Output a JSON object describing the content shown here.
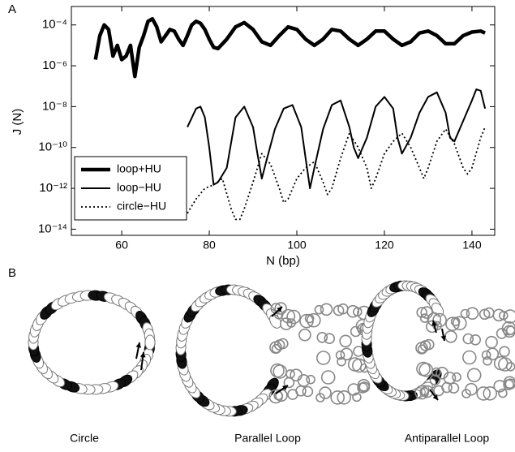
{
  "panel_a_label": "A",
  "panel_b_label": "B",
  "chart_data": {
    "type": "line",
    "xlabel": "N (bp)",
    "ylabel": "J (N)",
    "xlim": [
      48.5,
      145.2
    ],
    "xticks": [
      60,
      80,
      100,
      120,
      140
    ],
    "ylim": [
      5e-15,
      0.0008
    ],
    "ylog": true,
    "yticks": [
      {
        "value": 1e-14,
        "label": "10⁻¹⁴"
      },
      {
        "value": 1e-12,
        "label": "10⁻¹²"
      },
      {
        "value": 1e-10,
        "label": "10⁻¹⁰"
      },
      {
        "value": 1e-08,
        "label": "10⁻⁸"
      },
      {
        "value": 1e-06,
        "label": "10⁻⁶"
      },
      {
        "value": 0.0001,
        "label": "10⁻⁴"
      }
    ],
    "legend": "lower left",
    "series": [
      {
        "name": "loop+HU",
        "color": "#000000",
        "style": "thick",
        "x": [
          54,
          55,
          56,
          57,
          58,
          59,
          60,
          61,
          62,
          63,
          64,
          65,
          66,
          67,
          68,
          69,
          70,
          71,
          72,
          73,
          74,
          75,
          76,
          77,
          78,
          79,
          80,
          81,
          82,
          84,
          86,
          88,
          90,
          92,
          94,
          96,
          98,
          100,
          102,
          104,
          106,
          108,
          110,
          112,
          114,
          116,
          118,
          120,
          122,
          124,
          126,
          128,
          130,
          132,
          134,
          136,
          138,
          140,
          142,
          143
        ],
        "values": [
          2e-06,
          3e-05,
          0.0001,
          6e-05,
          3e-06,
          1e-05,
          2e-06,
          3e-06,
          1e-05,
          3e-07,
          8e-06,
          3e-05,
          0.00015,
          0.0002,
          8e-05,
          1.5e-05,
          3e-05,
          6e-05,
          5e-05,
          2e-05,
          1e-05,
          3e-05,
          0.0001,
          0.00015,
          0.00012,
          6e-05,
          2e-05,
          8e-06,
          7e-06,
          2e-05,
          8e-05,
          0.00013,
          6e-05,
          1.5e-05,
          1e-05,
          3e-05,
          8e-05,
          6e-05,
          2e-05,
          1e-05,
          2e-05,
          6e-05,
          5e-05,
          2e-05,
          1e-05,
          2e-05,
          5e-05,
          5e-05,
          2e-05,
          1e-05,
          1.5e-05,
          4e-05,
          5e-05,
          3e-05,
          1.2e-05,
          1.2e-05,
          3e-05,
          4.5e-05,
          5e-05,
          4e-05
        ]
      },
      {
        "name": "loop−HU",
        "color": "#000000",
        "style": "solid",
        "x": [
          75,
          77,
          78,
          79,
          80,
          81,
          82,
          84,
          86,
          88,
          90,
          91,
          92,
          93,
          95,
          97,
          99,
          101,
          102,
          103,
          104,
          106,
          108,
          110,
          112,
          113,
          114,
          116,
          118,
          120,
          122,
          123,
          124,
          126,
          128,
          130,
          132,
          134,
          135,
          136,
          138,
          140,
          141,
          142,
          143
        ],
        "values": [
          1e-09,
          8e-09,
          1e-08,
          3e-09,
          1e-10,
          1.5e-12,
          2e-12,
          1e-11,
          3e-09,
          1e-08,
          1e-09,
          5e-11,
          3e-12,
          2e-11,
          8e-10,
          8e-09,
          1.2e-08,
          1e-09,
          3e-11,
          1e-12,
          1e-11,
          8e-10,
          1.2e-08,
          2e-08,
          1e-09,
          1e-10,
          3e-11,
          3e-10,
          1e-08,
          3e-08,
          8e-09,
          3e-10,
          5e-11,
          3e-10,
          5e-09,
          3e-08,
          5e-08,
          5e-09,
          3e-10,
          2e-10,
          2e-09,
          2e-08,
          7e-08,
          6e-08,
          8e-09
        ]
      },
      {
        "name": "circle−HU",
        "color": "#000000",
        "style": "dotted",
        "x": [
          75,
          77,
          79,
          81,
          83,
          85,
          86,
          87,
          88,
          90,
          92,
          94,
          96,
          97,
          98,
          100,
          102,
          104,
          106,
          107,
          108,
          110,
          112,
          114,
          116,
          117,
          118,
          120,
          122,
          124,
          126,
          128,
          129,
          130,
          132,
          134,
          136,
          138,
          139,
          140,
          142,
          143
        ],
        "values": [
          6e-14,
          3e-13,
          1e-12,
          1.5e-12,
          3e-12,
          1e-13,
          3e-14,
          3e-14,
          1e-13,
          2e-12,
          5e-11,
          1.5e-11,
          1e-12,
          2e-13,
          3e-13,
          3e-12,
          1e-11,
          2e-11,
          2e-12,
          5e-13,
          1e-12,
          3e-11,
          5e-10,
          1e-10,
          1e-11,
          1e-12,
          3e-12,
          5e-11,
          2e-10,
          5e-10,
          1e-10,
          1e-11,
          3e-12,
          1e-11,
          2e-10,
          8e-10,
          1.5e-10,
          1e-11,
          5e-12,
          1e-11,
          3e-10,
          1e-09
        ]
      }
    ]
  },
  "panel_b": {
    "labels": [
      "Circle",
      "Parallel Loop",
      "Antiparallel Loop"
    ]
  }
}
